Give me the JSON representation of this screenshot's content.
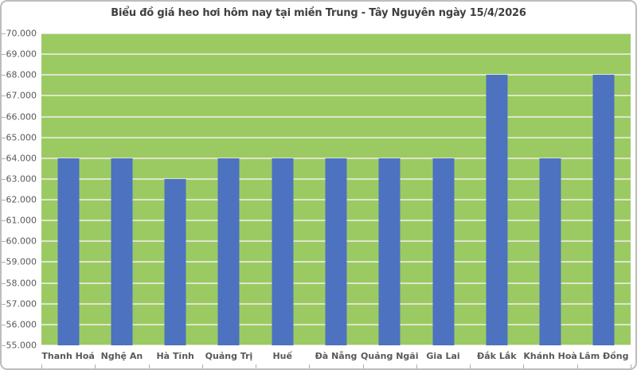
{
  "chart_data": {
    "type": "bar",
    "title": "Biểu đồ giá heo hơi hôm nay tại miền Trung - Tây Nguyên ngày 15/4/2026",
    "categories": [
      "Thanh Hoá",
      "Nghệ An",
      "Hà Tĩnh",
      "Quảng Trị",
      "Huế",
      "Đà Nẵng",
      "Quảng Ngãi",
      "Gia Lai",
      "Đắk Lắk",
      "Khánh Hoà",
      "Lâm Đồng"
    ],
    "values": [
      64000,
      64000,
      63000,
      64000,
      64000,
      64000,
      64000,
      64000,
      68000,
      64000,
      68000
    ],
    "xlabel": "",
    "ylabel": "",
    "ylim": [
      55000,
      70000
    ],
    "ytick_step": 1000,
    "ytick_labels": [
      "70.000",
      "69.000",
      "68.000",
      "67.000",
      "66.000",
      "65.000",
      "64.000",
      "63.000",
      "62.000",
      "61.000",
      "60.000",
      "59.000",
      "58.000",
      "57.000",
      "56.000",
      "55.000"
    ],
    "grid": true,
    "legend": false,
    "colors": {
      "bar": "#4d72c0",
      "plot_background": "#9cca62",
      "gridline": "#dce6cb",
      "title_text": "#3f3f3f",
      "axis_text": "#595959",
      "border": "#bdbdbd",
      "tick": "#aeaeae"
    }
  }
}
